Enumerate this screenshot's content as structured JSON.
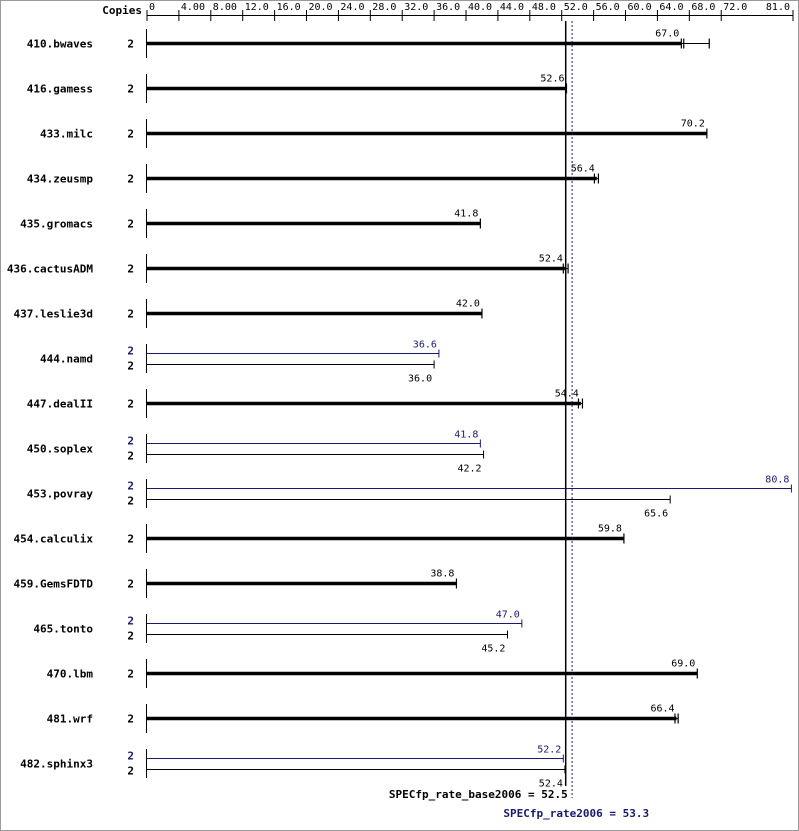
{
  "chart_data": {
    "type": "bar",
    "orientation": "horizontal",
    "copies_header": "Copies",
    "axis_ticks": [
      "0",
      "4.00",
      "8.00",
      "12.0",
      "16.0",
      "20.0",
      "24.0",
      "28.0",
      "32.0",
      "36.0",
      "40.0",
      "44.0",
      "48.0",
      "52.0",
      "56.0",
      "60.0",
      "64.0",
      "68.0",
      "72.0",
      "81.0"
    ],
    "xlim": [
      0,
      81.0
    ],
    "grid": false,
    "colors": {
      "base": "#000000",
      "peak": "#191970"
    },
    "rows": [
      {
        "benchmark": "410.bwaves",
        "base": {
          "copies": "2",
          "value": 67.0,
          "label": "67.0",
          "runs": [
            67.0,
            67.3,
            70.5
          ]
        }
      },
      {
        "benchmark": "416.gamess",
        "base": {
          "copies": "2",
          "value": 52.6,
          "label": "52.6"
        }
      },
      {
        "benchmark": "433.milc",
        "base": {
          "copies": "2",
          "value": 70.2,
          "label": "70.2"
        }
      },
      {
        "benchmark": "434.zeusmp",
        "base": {
          "copies": "2",
          "value": 56.4,
          "label": "56.4",
          "runs": [
            56.1,
            56.6
          ]
        }
      },
      {
        "benchmark": "435.gromacs",
        "base": {
          "copies": "2",
          "value": 41.8,
          "label": "41.8"
        }
      },
      {
        "benchmark": "436.cactusADM",
        "base": {
          "copies": "2",
          "value": 52.4,
          "label": "52.4",
          "runs": [
            52.2,
            52.8
          ]
        }
      },
      {
        "benchmark": "437.leslie3d",
        "base": {
          "copies": "2",
          "value": 42.0,
          "label": "42.0"
        }
      },
      {
        "benchmark": "444.namd",
        "peak": {
          "copies": "2",
          "value": 36.6,
          "label": "36.6"
        },
        "base": {
          "copies": "2",
          "value": 36.0,
          "label": "36.0"
        }
      },
      {
        "benchmark": "447.dealII",
        "base": {
          "copies": "2",
          "value": 54.4,
          "label": "54.4",
          "runs": [
            54.1,
            54.6
          ]
        }
      },
      {
        "benchmark": "450.soplex",
        "peak": {
          "copies": "2",
          "value": 41.8,
          "label": "41.8"
        },
        "base": {
          "copies": "2",
          "value": 42.2,
          "label": "42.2"
        }
      },
      {
        "benchmark": "453.povray",
        "peak": {
          "copies": "2",
          "value": 80.8,
          "label": "80.8"
        },
        "base": {
          "copies": "2",
          "value": 65.6,
          "label": "65.6"
        }
      },
      {
        "benchmark": "454.calculix",
        "base": {
          "copies": "2",
          "value": 59.8,
          "label": "59.8"
        }
      },
      {
        "benchmark": "459.GemsFDTD",
        "base": {
          "copies": "2",
          "value": 38.8,
          "label": "38.8"
        }
      },
      {
        "benchmark": "465.tonto",
        "peak": {
          "copies": "2",
          "value": 47.0,
          "label": "47.0"
        },
        "base": {
          "copies": "2",
          "value": 45.2,
          "label": "45.2"
        }
      },
      {
        "benchmark": "470.lbm",
        "base": {
          "copies": "2",
          "value": 69.0,
          "label": "69.0"
        }
      },
      {
        "benchmark": "481.wrf",
        "base": {
          "copies": "2",
          "value": 66.4,
          "label": "66.4",
          "runs": [
            66.2,
            66.6
          ]
        }
      },
      {
        "benchmark": "482.sphinx3",
        "peak": {
          "copies": "2",
          "value": 52.2,
          "label": "52.2"
        },
        "base": {
          "copies": "2",
          "value": 52.4,
          "label": "52.4"
        }
      }
    ],
    "summary": [
      {
        "label": "SPECfp_rate_base2006 = 52.5",
        "value": 52.5,
        "series": "base",
        "line": "solid"
      },
      {
        "label": "SPECfp_rate2006 = 53.3",
        "value": 53.3,
        "series": "peak",
        "line": "dotted"
      }
    ]
  }
}
